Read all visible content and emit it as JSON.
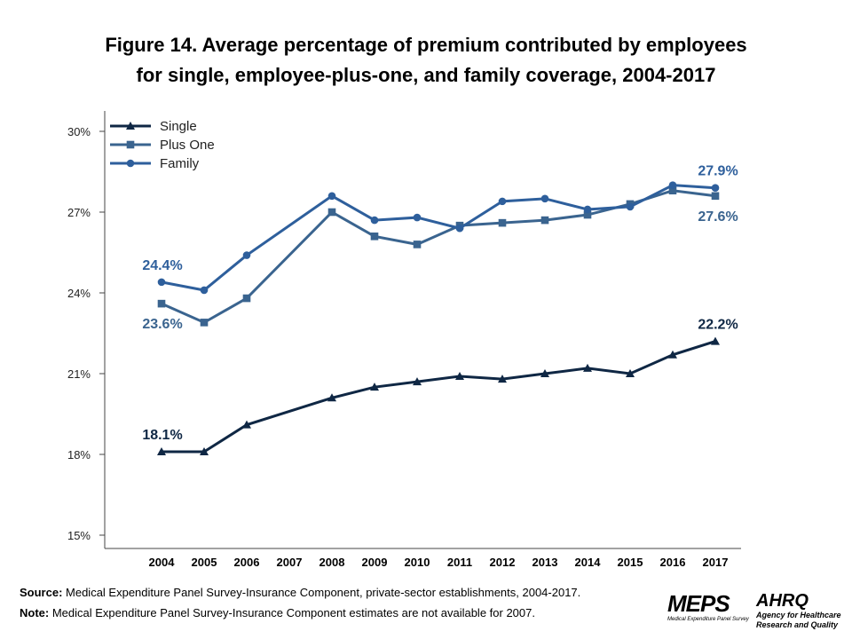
{
  "title_line1": "Figure 14. Average percentage of premium contributed by employees",
  "title_line2": "for single, employee-plus-one, and family coverage, 2004-2017",
  "chart_data": {
    "type": "line",
    "title": "Figure 14. Average percentage of premium contributed by employees for single, employee-plus-one, and family coverage, 2004-2017",
    "xlabel": "",
    "ylabel": "",
    "categories": [
      "2004",
      "2005",
      "2006",
      "2007",
      "2008",
      "2009",
      "2010",
      "2011",
      "2012",
      "2013",
      "2014",
      "2015",
      "2016",
      "2017"
    ],
    "yticks": [
      "15%",
      "18%",
      "21%",
      "24%",
      "27%",
      "30%"
    ],
    "ylim": [
      15,
      30
    ],
    "grid": false,
    "legend": "top-left",
    "series": [
      {
        "name": "Single",
        "marker": "triangle",
        "color": "#0f2744",
        "values": [
          18.1,
          18.1,
          19.1,
          null,
          20.1,
          20.5,
          20.7,
          20.9,
          20.8,
          21.0,
          21.2,
          21.0,
          21.7,
          22.2
        ]
      },
      {
        "name": "Plus One",
        "marker": "square",
        "color": "#3a648f",
        "values": [
          23.6,
          22.9,
          23.8,
          null,
          27.0,
          26.1,
          25.8,
          26.5,
          26.6,
          26.7,
          26.9,
          27.3,
          27.8,
          27.6
        ]
      },
      {
        "name": "Family",
        "marker": "circle",
        "color": "#2e5f9c",
        "values": [
          24.4,
          24.1,
          25.4,
          null,
          27.6,
          26.7,
          26.8,
          26.4,
          27.4,
          27.5,
          27.1,
          27.2,
          28.0,
          27.9
        ]
      }
    ],
    "data_labels": [
      {
        "series": "Family",
        "x": "2004",
        "text": "24.4%"
      },
      {
        "series": "Plus One",
        "x": "2004",
        "text": "23.6%"
      },
      {
        "series": "Single",
        "x": "2004",
        "text": "18.1%"
      },
      {
        "series": "Family",
        "x": "2017",
        "text": "27.9%"
      },
      {
        "series": "Plus One",
        "x": "2017",
        "text": "27.6%"
      },
      {
        "series": "Single",
        "x": "2017",
        "text": "22.2%"
      }
    ]
  },
  "footer": {
    "source_label": "Source:",
    "source_text": " Medical Expenditure Panel Survey-Insurance Component,  private-sector establishments, 2004-2017.",
    "note_label": "Note:",
    "note_text": " Medical Expenditure Panel Survey-Insurance Component  estimates are not available for 2007."
  },
  "logos": {
    "meps": "MEPS",
    "meps_sub": "Medical Expenditure Panel Survey",
    "ahrq": "AHRQ",
    "ahrq_sub1": "Agency for Healthcare",
    "ahrq_sub2": "Research and Quality"
  }
}
